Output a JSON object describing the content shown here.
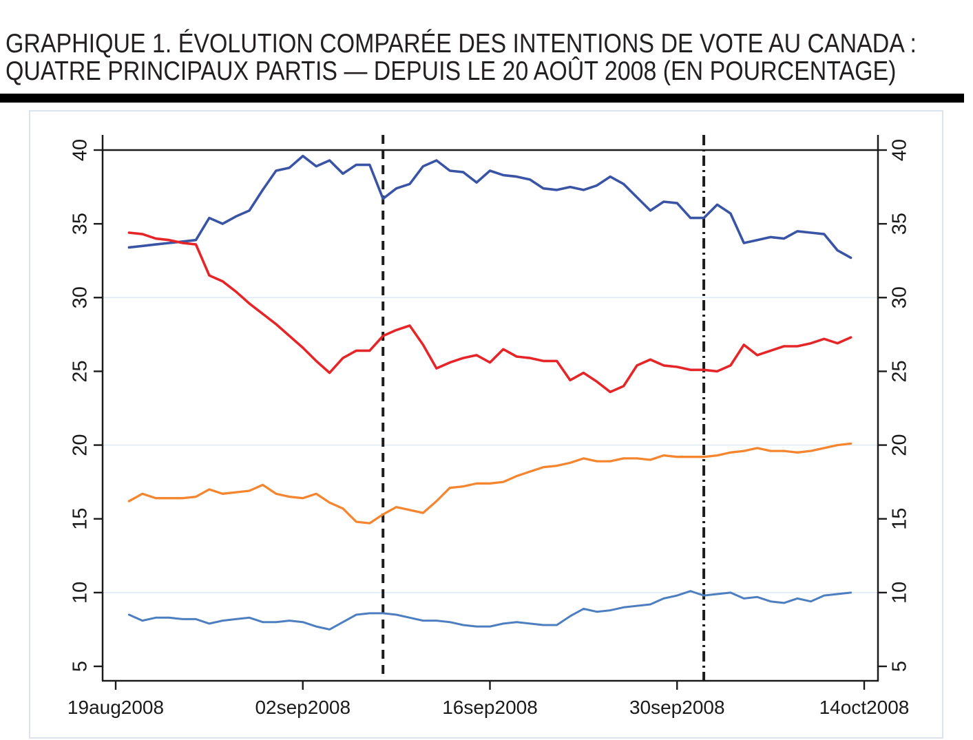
{
  "page": {
    "title_line1": "GRAPHIQUE 1. ÉVOLUTION COMPARÉE DES INTENTIONS DE VOTE AU CANADA :",
    "title_line2": "QUATRE PRINCIPAUX PARTIS — DEPUIS LE 20 AOÛT 2008 (EN POURCENTAGE)"
  },
  "colors": {
    "title_text": "#231f20",
    "black_bar": "#000000",
    "frame_border": "#dbe4ee",
    "axis": "#1a1a1a",
    "light_gridline": "#dfeaf5",
    "dark_gridline": "#1a1a1a",
    "reference_line": "#1c1c1c"
  },
  "chart_data": {
    "type": "line",
    "title": "",
    "xlabel": "",
    "ylabel": "",
    "legend": "none",
    "x_axis": {
      "tick_labels": [
        "19aug2008",
        "02sep2008",
        "16sep2008",
        "30sep2008",
        "14oct2008"
      ],
      "tick_days": [
        0,
        14,
        28,
        42,
        56
      ],
      "day0_date": "19aug2008"
    },
    "y_axis": {
      "min": 5,
      "max": 40,
      "tick_interval": 5,
      "tick_values": [
        5,
        10,
        15,
        20,
        25,
        30,
        35,
        40
      ],
      "tick_labels": [
        "5",
        "10",
        "15",
        "20",
        "25",
        "30",
        "35",
        "40"
      ],
      "dark_line_at": 40,
      "light_gridlines_at": [
        10,
        20,
        30
      ],
      "labels_on_both_sides": true
    },
    "vertical_reference_lines": [
      {
        "style": "dashed",
        "day": 20
      },
      {
        "style": "dash-dot",
        "day": 44
      }
    ],
    "series": [
      {
        "name": "dark-blue-line",
        "color": "#3a54a5",
        "stroke_width": 3.6,
        "start_day": 1,
        "values": [
          33.4,
          33.5,
          33.6,
          33.7,
          33.8,
          33.9,
          35.4,
          35.0,
          35.5,
          35.9,
          37.3,
          38.6,
          38.8,
          39.6,
          38.9,
          39.3,
          38.4,
          39.0,
          39.0,
          36.7,
          37.4,
          37.7,
          38.9,
          39.3,
          38.6,
          38.5,
          37.8,
          38.6,
          38.3,
          38.2,
          38.0,
          37.4,
          37.3,
          37.5,
          37.3,
          37.6,
          38.2,
          37.7,
          36.8,
          35.9,
          36.5,
          36.4,
          35.4,
          35.4,
          36.3,
          35.7,
          33.7,
          33.9,
          34.1,
          34.0,
          34.5,
          34.4,
          34.3,
          33.2,
          32.7
        ]
      },
      {
        "name": "red-line",
        "color": "#e52528",
        "stroke_width": 3.6,
        "start_day": 1,
        "values": [
          34.4,
          34.3,
          34.0,
          33.9,
          33.7,
          33.6,
          31.5,
          31.1,
          30.4,
          29.6,
          28.9,
          28.2,
          27.4,
          26.6,
          25.7,
          24.9,
          25.9,
          26.4,
          26.4,
          27.4,
          27.8,
          28.1,
          26.8,
          25.2,
          25.6,
          25.9,
          26.1,
          25.6,
          26.5,
          26.0,
          25.9,
          25.7,
          25.7,
          24.4,
          24.9,
          24.3,
          23.6,
          24.0,
          25.4,
          25.8,
          25.4,
          25.3,
          25.1,
          25.1,
          25.0,
          25.4,
          26.8,
          26.1,
          26.4,
          26.7,
          26.7,
          26.9,
          27.2,
          26.9,
          27.3
        ]
      },
      {
        "name": "orange-line",
        "color": "#f5862f",
        "stroke_width": 3.3,
        "start_day": 1,
        "values": [
          16.2,
          16.7,
          16.4,
          16.4,
          16.4,
          16.5,
          17.0,
          16.7,
          16.8,
          16.9,
          17.3,
          16.7,
          16.5,
          16.4,
          16.7,
          16.1,
          15.7,
          14.8,
          14.7,
          15.3,
          15.8,
          15.6,
          15.4,
          16.2,
          17.1,
          17.2,
          17.4,
          17.4,
          17.5,
          17.9,
          18.2,
          18.5,
          18.6,
          18.8,
          19.1,
          18.9,
          18.9,
          19.1,
          19.1,
          19.0,
          19.3,
          19.2,
          19.2,
          19.2,
          19.3,
          19.5,
          19.6,
          19.8,
          19.6,
          19.6,
          19.5,
          19.6,
          19.8,
          20.0,
          20.1
        ]
      },
      {
        "name": "light-blue-line",
        "color": "#4d7ec0",
        "stroke_width": 3.0,
        "start_day": 1,
        "values": [
          8.5,
          8.1,
          8.3,
          8.3,
          8.2,
          8.2,
          7.9,
          8.1,
          8.2,
          8.3,
          8.0,
          8.0,
          8.1,
          8.0,
          7.7,
          7.5,
          8.0,
          8.5,
          8.6,
          8.6,
          8.5,
          8.3,
          8.1,
          8.1,
          8.0,
          7.8,
          7.7,
          7.7,
          7.9,
          8.0,
          7.9,
          7.8,
          7.8,
          8.4,
          8.9,
          8.7,
          8.8,
          9.0,
          9.1,
          9.2,
          9.6,
          9.8,
          10.1,
          9.8,
          9.9,
          10.0,
          9.6,
          9.7,
          9.4,
          9.3,
          9.6,
          9.4,
          9.8,
          9.9,
          10.0
        ]
      }
    ]
  }
}
